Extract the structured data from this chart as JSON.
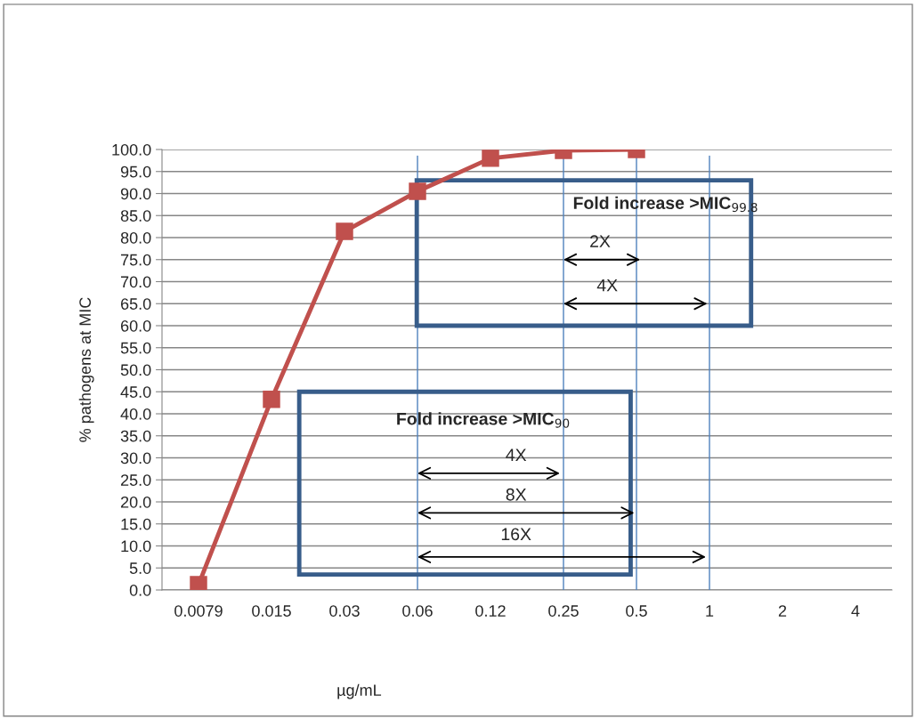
{
  "chart_data": {
    "type": "line",
    "categories": [
      "0.0079",
      "0.015",
      "0.03",
      "0.06",
      "0.12",
      "0.25",
      "0.5",
      "1",
      "2",
      "4"
    ],
    "series": [
      {
        "color": "#c0504d",
        "values": [
          1.2,
          43.3,
          81.4,
          90.5,
          98.0,
          99.8,
          100.0,
          null,
          null,
          null
        ]
      }
    ],
    "marker": "square",
    "line_style": "solid",
    "ylim": [
      0,
      100
    ],
    "yticks": [
      {
        "value": 0,
        "label": "0.0"
      },
      {
        "value": 5,
        "label": "5.0"
      },
      {
        "value": 10,
        "label": "10.0"
      },
      {
        "value": 15,
        "label": "15.0"
      },
      {
        "value": 20,
        "label": "20.0"
      },
      {
        "value": 25,
        "label": "25.0"
      },
      {
        "value": 30,
        "label": "30.0"
      },
      {
        "value": 35,
        "label": "35.0"
      },
      {
        "value": 40,
        "label": "40.0"
      },
      {
        "value": 45,
        "label": "45.0"
      },
      {
        "value": 50,
        "label": "50.0"
      },
      {
        "value": 55,
        "label": "55.0"
      },
      {
        "value": 60,
        "label": "60.0"
      },
      {
        "value": 65,
        "label": "65.0"
      },
      {
        "value": 70,
        "label": "70.0"
      },
      {
        "value": 75,
        "label": "75.0"
      },
      {
        "value": 80,
        "label": "80.0"
      },
      {
        "value": 85,
        "label": "85.0"
      },
      {
        "value": 90,
        "label": "90.0"
      },
      {
        "value": 95,
        "label": "95.0"
      },
      {
        "value": 100,
        "label": "100.0"
      }
    ],
    "grid": "y",
    "xlabel": "µg/mL",
    "ylabel": "% pathogens at MIC",
    "ref_lines": [
      {
        "axis": "x",
        "value": "0.06",
        "color": "#4f81bd"
      },
      {
        "axis": "x",
        "value": "0.25",
        "color": "#4f81bd"
      },
      {
        "axis": "x",
        "value": "0.5",
        "color": "#4f81bd"
      },
      {
        "axis": "x",
        "value": "1",
        "color": "#4f81bd"
      }
    ],
    "annotations": [
      "Fold increase >MIC$_{99.8}$",
      "2X",
      "4X",
      "Fold increase >MIC$_{90}$",
      "4X",
      "8X",
      "16X"
    ]
  }
}
